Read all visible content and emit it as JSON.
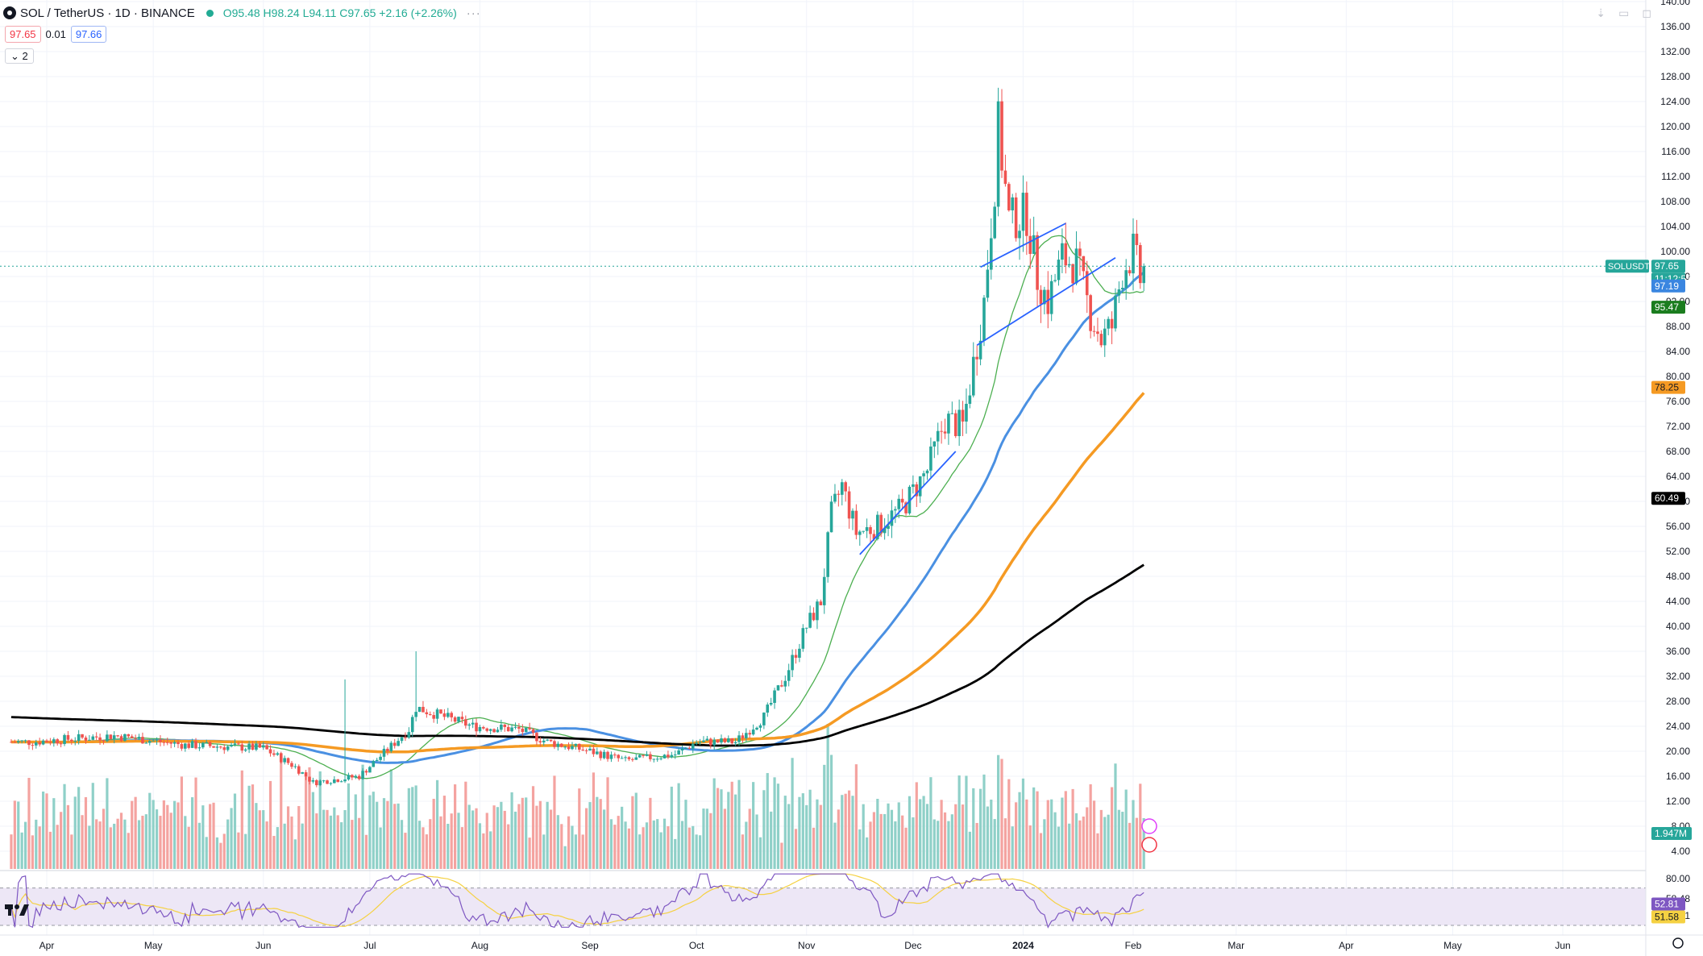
{
  "header": {
    "symbol": "SOL / TetherUS · 1D · BINANCE",
    "ohlc": "O95.48 H98.24 L94.11 C97.65 +2.16 (+2.26%)",
    "more": "···",
    "sell_price": "97.65",
    "spread": "0.01",
    "buy_price": "97.66",
    "indicators_toggle": "2"
  },
  "top_icons": [
    "down-arrow-icon",
    "collapse-icon",
    "maximize-icon"
  ],
  "colors": {
    "up": "#26a69a",
    "down": "#ef5350",
    "vol_up": "#8fd0c8",
    "vol_down": "#f4a3a0",
    "ma20": "#4caf50",
    "ma50": "#4a90e2",
    "ma100": "#f59a23",
    "ma200": "#000000",
    "trendline": "#2962ff",
    "rsi": "#7e57c2",
    "rsi_ma": "#f5d142",
    "rsi_band": "#ede7f6",
    "last_price": "#26a69a"
  },
  "chart_data": {
    "type": "candlestick",
    "symbol": "SOL / TetherUS",
    "timeframe": "1D",
    "exchange": "BINANCE",
    "y_axis": {
      "range": [
        0,
        140
      ],
      "ticks": [
        "4.00",
        "8.00",
        "12.00",
        "16.00",
        "20.00",
        "24.00",
        "28.00",
        "32.00",
        "36.00",
        "40.00",
        "44.00",
        "48.00",
        "52.00",
        "56.00",
        "60.00",
        "64.00",
        "68.00",
        "72.00",
        "76.00",
        "80.00",
        "84.00",
        "88.00",
        "92.00",
        "96.00",
        "100.00",
        "104.00",
        "108.00",
        "112.00",
        "116.00",
        "120.00",
        "124.00",
        "128.00",
        "132.00",
        "136.00",
        "140.00"
      ]
    },
    "x_axis": {
      "labels": [
        "Apr",
        "May",
        "Jun",
        "Jul",
        "Aug",
        "Sep",
        "Oct",
        "Nov",
        "Dec",
        "2024",
        "Feb",
        "Mar",
        "Apr",
        "May",
        "Jun"
      ],
      "bold": [
        "2024"
      ]
    },
    "anchor_closes": [
      [
        "Mar 28",
        21.5
      ],
      [
        "Apr 20",
        22.5
      ],
      [
        "May 10",
        21.0
      ],
      [
        "Jun 1",
        20.5
      ],
      [
        "Jun 10",
        17.5
      ],
      [
        "Jun 15",
        15.0
      ],
      [
        "Jun 28",
        16.0
      ],
      [
        "Jul 12",
        23.5
      ],
      [
        "Jul 14",
        27.0
      ],
      [
        "Jul 30",
        24.0
      ],
      [
        "Aug 12",
        23.5
      ],
      [
        "Aug 20",
        21.5
      ],
      [
        "Sep 1",
        20.0
      ],
      [
        "Sep 11",
        18.5
      ],
      [
        "Sep 25",
        19.5
      ],
      [
        "Oct 1",
        21.5
      ],
      [
        "Oct 12",
        21.5
      ],
      [
        "Oct 20",
        25.5
      ],
      [
        "Oct 26",
        32.0
      ],
      [
        "Nov 1",
        40.0
      ],
      [
        "Nov 5",
        44.0
      ],
      [
        "Nov 8",
        58.0
      ],
      [
        "Nov 11",
        62.5
      ],
      [
        "Nov 15",
        55.0
      ],
      [
        "Nov 21",
        56.0
      ],
      [
        "Nov 28",
        59.0
      ],
      [
        "Dec 5",
        65.0
      ],
      [
        "Dec 10",
        73.0
      ],
      [
        "Dec 15",
        72.0
      ],
      [
        "Dec 21",
        92.0
      ],
      [
        "Dec 24",
        111.0
      ],
      [
        "Dec 25",
        120.0
      ],
      [
        "Dec 28",
        105.0
      ],
      [
        "Jan 2",
        106.0
      ],
      [
        "Jan 5",
        96.0
      ],
      [
        "Jan 8",
        92.0
      ],
      [
        "Jan 12",
        99.0
      ],
      [
        "Jan 16",
        98.0
      ],
      [
        "Jan 20",
        90.0
      ],
      [
        "Jan 23",
        86.0
      ],
      [
        "Jan 26",
        88.0
      ],
      [
        "Jan 29",
        97.0
      ],
      [
        "Feb 1",
        100.0
      ],
      [
        "Feb 3",
        95.5
      ],
      [
        "Feb 4",
        97.65
      ]
    ],
    "moving_averages": [
      {
        "period": 20,
        "color": "ma20",
        "last": null
      },
      {
        "period": 50,
        "color": "ma50",
        "last": "97.19"
      },
      {
        "period": 100,
        "color": "ma100",
        "last": "78.25"
      },
      {
        "period": 200,
        "color": "ma200",
        "last": "60.49"
      }
    ],
    "trendlines": [
      {
        "from": [
          "Nov 16",
          51.5
        ],
        "to": [
          "Dec 13",
          68.0
        ]
      },
      {
        "from": [
          "Dec 20",
          97.5
        ],
        "to": [
          "Jan 13",
          104.5
        ]
      },
      {
        "from": [
          "Dec 19",
          85.0
        ],
        "to": [
          "Jan 27",
          99.0
        ]
      }
    ],
    "volume": {
      "last": "1.947M"
    },
    "rsi": {
      "ticks": [
        "80.00",
        "58.48",
        "40.41"
      ],
      "upper": 70,
      "lower": 30,
      "last_rsi": "52.81",
      "last_ma": "51.58"
    },
    "last_price": {
      "label": "SOLUSDT",
      "value": "97.65",
      "countdown": "11:12:57",
      "green_label": "95.47"
    }
  }
}
